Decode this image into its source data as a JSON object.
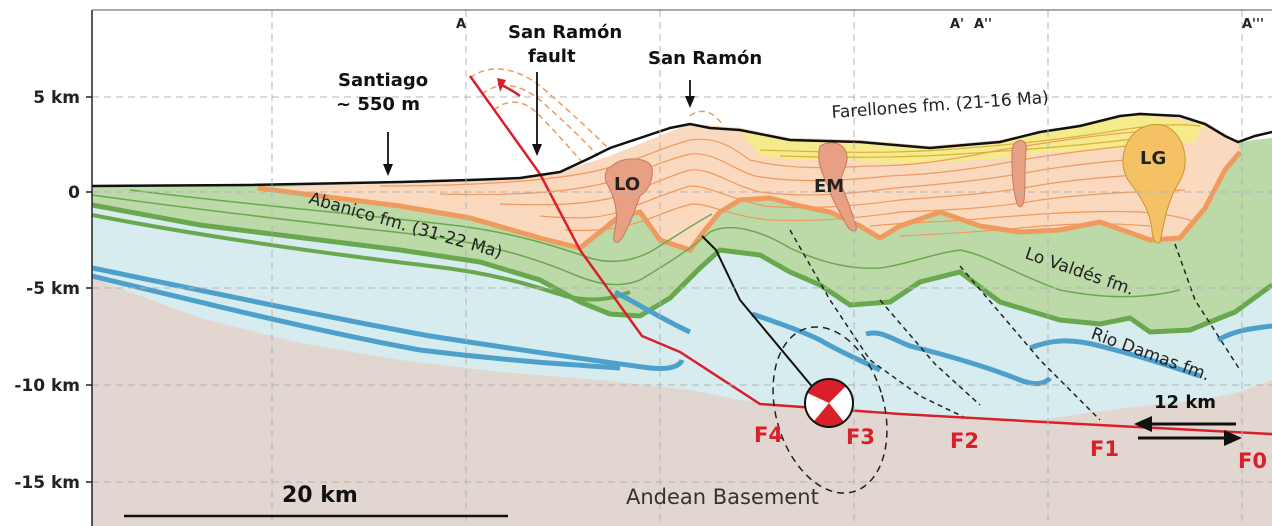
{
  "axis": {
    "y_ticks": [
      "5 km",
      "0",
      "-5 km",
      "-10 km",
      "-15 km"
    ]
  },
  "section_labels": [
    "A",
    "A'",
    "A''",
    "A'''"
  ],
  "places": {
    "santiago_name": "Santiago",
    "santiago_elev": "~ 550 m",
    "fault_line1": "San Ramón",
    "fault_line2": "fault",
    "san_ramon": "San Ramón"
  },
  "formations": {
    "farellones": "Farellones fm. (21-16 Ma)",
    "abanico": "Abanico fm. (31-22 Ma)",
    "lo_valdes": "Lo Valdés fm.",
    "rio_damas": "Rio Damas fm.",
    "basement": "Andean Basement"
  },
  "intrusions": [
    "LO",
    "EM",
    "LG"
  ],
  "faults": [
    "F4",
    "F3",
    "F2",
    "F1",
    "F0"
  ],
  "shortening": "12 km",
  "scale_bar": "20 km",
  "colors": {
    "basement": "#e2d6d0",
    "rio_damas_layer": "#d6ecee",
    "lo_valdes_layer": "#bcd9a8",
    "lo_valdes_line": "#6aa84f",
    "rio_damas_line": "#4ea0cc",
    "abanico_fill": "#fbd9bf",
    "abanico_line": "#ef9a5e",
    "farellones_fill": "#f5ea8c",
    "intrusion": "#e7a084",
    "intrusion_lg": "#f4c165",
    "fault": "#d9202a",
    "topography": "#111111"
  }
}
